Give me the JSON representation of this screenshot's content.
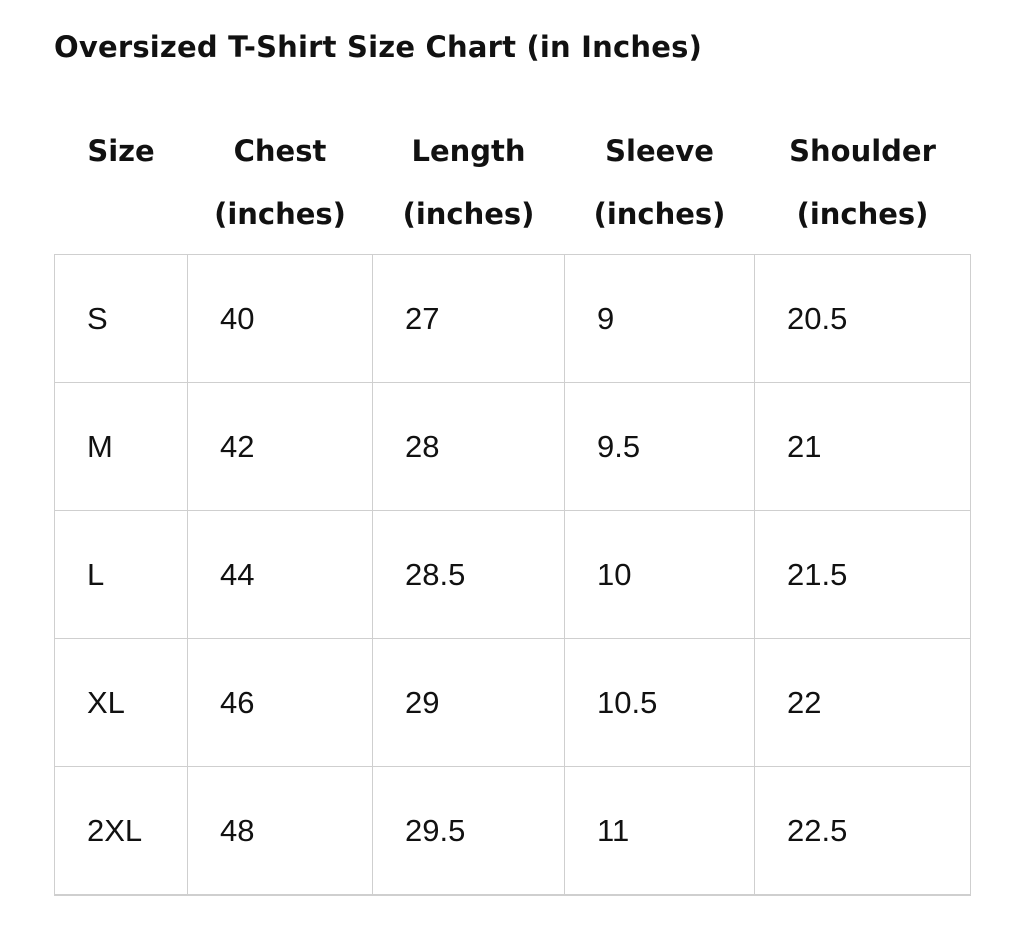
{
  "title": "Oversized T-Shirt Size Chart (in Inches)",
  "columns": [
    {
      "name": "Size",
      "unit": ""
    },
    {
      "name": "Chest",
      "unit": "(inches)"
    },
    {
      "name": "Length",
      "unit": "(inches)"
    },
    {
      "name": "Sleeve",
      "unit": "(inches)"
    },
    {
      "name": "Shoulder",
      "unit": "(inches)"
    }
  ],
  "rows": [
    [
      "S",
      "40",
      "27",
      "9",
      "20.5"
    ],
    [
      "M",
      "42",
      "28",
      "9.5",
      "21"
    ],
    [
      "L",
      "44",
      "28.5",
      "10",
      "21.5"
    ],
    [
      "XL",
      "46",
      "29",
      "10.5",
      "22"
    ],
    [
      "2XL",
      "48",
      "29.5",
      "11",
      "22.5"
    ]
  ]
}
